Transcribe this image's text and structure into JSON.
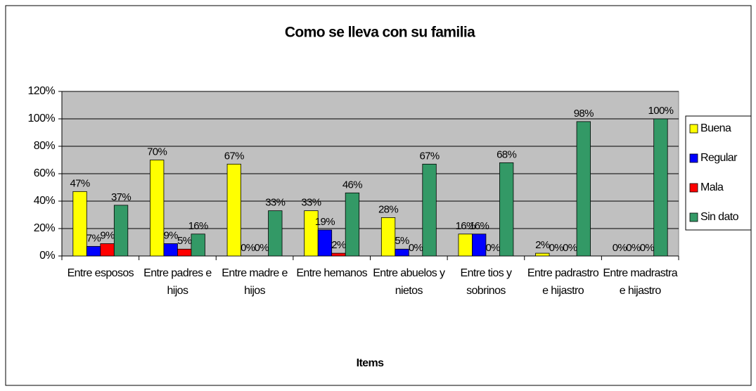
{
  "chart_data": {
    "type": "bar",
    "title": "Como se lleva con su familia",
    "x_label": "Items",
    "categories": [
      "Entre esposos",
      "Entre padres e hijos",
      "Entre madre e hijos",
      "Entre hemanos",
      "Entre abuelos y nietos",
      "Entre tios y sobrinos",
      "Entre padrastro e hijastro",
      "Entre madrastra e hijastro"
    ],
    "series": [
      {
        "name": "Buena",
        "color": "#ffff00",
        "values": [
          47,
          70,
          67,
          33,
          28,
          16,
          2,
          0
        ],
        "value_labels": [
          "47%",
          "70%",
          "67%",
          "33%",
          "28%",
          "16%",
          "2%",
          "0%"
        ]
      },
      {
        "name": "Regular",
        "color": "#0000ff",
        "values": [
          7,
          9,
          0,
          19,
          5,
          16,
          0,
          0
        ],
        "value_labels": [
          "7%",
          "9%",
          "0%",
          "19%",
          "5%",
          "16%",
          "0%",
          "0%"
        ]
      },
      {
        "name": "Mala",
        "color": "#ff0000",
        "values": [
          9,
          5,
          0,
          2,
          0,
          0,
          0,
          0
        ],
        "value_labels": [
          "9%",
          "5%",
          "0%",
          "2%",
          "0%",
          "0%",
          "0%",
          "0%"
        ]
      },
      {
        "name": "Sin dato",
        "color": "#339966",
        "values": [
          37,
          16,
          33,
          46,
          67,
          68,
          98,
          100
        ],
        "value_labels": [
          "37%",
          "16%",
          "33%",
          "46%",
          "67%",
          "68%",
          "98%",
          "100%"
        ]
      }
    ],
    "ylim": [
      0,
      120
    ],
    "yticks": [
      {
        "value": 0,
        "label": "0%"
      },
      {
        "value": 20,
        "label": "20%"
      },
      {
        "value": 40,
        "label": "40%"
      },
      {
        "value": 60,
        "label": "60%"
      },
      {
        "value": 80,
        "label": "80%"
      },
      {
        "value": 100,
        "label": "100%"
      },
      {
        "value": 120,
        "label": "120%"
      }
    ],
    "grid": true,
    "legend": "right"
  }
}
